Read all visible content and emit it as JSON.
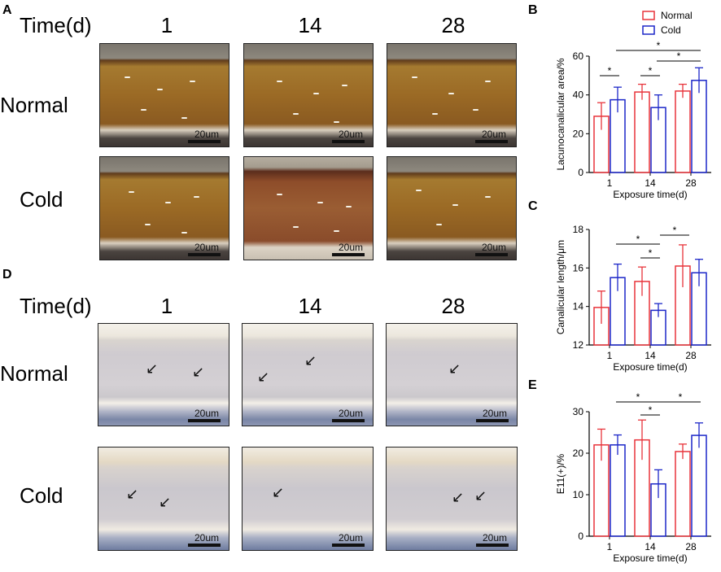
{
  "panels": {
    "a": "A",
    "b": "B",
    "c": "C",
    "d": "D",
    "e": "E"
  },
  "micrographs": {
    "time_label": "Time(d)",
    "columns": [
      "1",
      "14",
      "28"
    ],
    "rows": [
      "Normal",
      "Cold"
    ],
    "scale_label": "20um"
  },
  "colors": {
    "normal": "#e8343b",
    "cold": "#1c27c8",
    "axis": "#000000"
  },
  "legend": {
    "normal": "Normal",
    "cold": "Cold"
  },
  "chart_data": [
    {
      "id": "B",
      "type": "bar",
      "categories": [
        "1",
        "14",
        "28"
      ],
      "xlabel": "Exposure time(d)",
      "ylabel": "Lacunocanalicular area/%",
      "ylim": [
        0,
        60
      ],
      "yticks": [
        "0",
        "20",
        "40",
        "60"
      ],
      "series": [
        {
          "name": "Normal",
          "values": [
            29,
            41.5,
            42
          ],
          "errors": [
            7,
            4,
            3.5
          ]
        },
        {
          "name": "Cold",
          "values": [
            37.5,
            33.5,
            47.5
          ],
          "errors": [
            6.5,
            6.5,
            6.5
          ]
        }
      ],
      "significance": [
        "*",
        "*",
        "*",
        "*"
      ]
    },
    {
      "id": "C",
      "type": "bar",
      "categories": [
        "1",
        "14",
        "28"
      ],
      "xlabel": "Exposure time(d)",
      "ylabel": "Canalicular length/μm",
      "ylim": [
        12,
        18
      ],
      "yticks": [
        "12",
        "14",
        "16",
        "18"
      ],
      "series": [
        {
          "name": "Normal",
          "values": [
            13.95,
            15.3,
            16.1
          ],
          "errors": [
            0.85,
            0.75,
            1.1
          ]
        },
        {
          "name": "Cold",
          "values": [
            15.5,
            13.8,
            15.75
          ],
          "errors": [
            0.7,
            0.35,
            0.7
          ]
        }
      ],
      "significance": [
        "*",
        "*",
        "*"
      ]
    },
    {
      "id": "E",
      "type": "bar",
      "categories": [
        "1",
        "14",
        "28"
      ],
      "xlabel": "Exposure time(d)",
      "ylabel": "E11(+)/%",
      "ylim": [
        0,
        30
      ],
      "yticks": [
        "0",
        "10",
        "20",
        "30"
      ],
      "series": [
        {
          "name": "Normal",
          "values": [
            22,
            23.2,
            20.4
          ],
          "errors": [
            3.8,
            4.8,
            1.8
          ]
        },
        {
          "name": "Cold",
          "values": [
            22,
            12.6,
            24.3
          ],
          "errors": [
            2.4,
            3.4,
            3
          ]
        }
      ],
      "significance": [
        "*",
        "*",
        "*"
      ]
    }
  ]
}
